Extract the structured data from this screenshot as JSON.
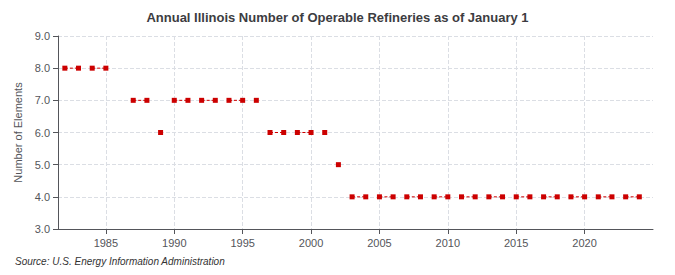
{
  "chart_data": {
    "type": "line",
    "title": "Annual Illinois Number of Operable Refineries as of January 1",
    "ylabel": "Number of Elements",
    "annotation": "Source: U.S. Energy Information Administration",
    "color": "#cc0000",
    "marker": "square",
    "line_style": "dashed",
    "grid": true,
    "xlim": [
      1981.5,
      2025
    ],
    "xticks": [
      1985,
      1990,
      1995,
      2000,
      2005,
      2010,
      2015,
      2020
    ],
    "ylim": [
      3.0,
      9.0
    ],
    "yticks": [
      {
        "value": 3.0,
        "label": "3.0"
      },
      {
        "value": 4.0,
        "label": "4.0"
      },
      {
        "value": 5.0,
        "label": "5.0"
      },
      {
        "value": 6.0,
        "label": "6.0"
      },
      {
        "value": 7.0,
        "label": "7.0"
      },
      {
        "value": 8.0,
        "label": "8.0"
      },
      {
        "value": 9.0,
        "label": "9.0"
      }
    ],
    "series": [
      {
        "x": [
          1982,
          1983
        ],
        "values": [
          8,
          8
        ]
      },
      {
        "x": [
          1984,
          1985
        ],
        "values": [
          8,
          8
        ]
      },
      {
        "x": [
          1987,
          1988
        ],
        "values": [
          7,
          7
        ]
      },
      {
        "x": [
          1989
        ],
        "values": [
          6
        ]
      },
      {
        "x": [
          1990,
          1991
        ],
        "values": [
          7,
          7
        ]
      },
      {
        "x": [
          1992,
          1993
        ],
        "values": [
          7,
          7
        ]
      },
      {
        "x": [
          1994,
          1995
        ],
        "values": [
          7,
          7
        ]
      },
      {
        "x": [
          1996
        ],
        "values": [
          7
        ]
      },
      {
        "x": [
          1997,
          1998
        ],
        "values": [
          6,
          6
        ]
      },
      {
        "x": [
          1999,
          2000
        ],
        "values": [
          6,
          6
        ]
      },
      {
        "x": [
          2001
        ],
        "values": [
          6
        ]
      },
      {
        "x": [
          2002
        ],
        "values": [
          5
        ]
      },
      {
        "x": [
          2003,
          2004
        ],
        "values": [
          4,
          4
        ]
      },
      {
        "x": [
          2005,
          2006
        ],
        "values": [
          4,
          4
        ]
      },
      {
        "x": [
          2007,
          2008
        ],
        "values": [
          4,
          4
        ]
      },
      {
        "x": [
          2009,
          2010
        ],
        "values": [
          4,
          4
        ]
      },
      {
        "x": [
          2011,
          2012
        ],
        "values": [
          4,
          4
        ]
      },
      {
        "x": [
          2013,
          2014
        ],
        "values": [
          4,
          4
        ]
      },
      {
        "x": [
          2015,
          2016
        ],
        "values": [
          4,
          4
        ]
      },
      {
        "x": [
          2017,
          2018
        ],
        "values": [
          4,
          4
        ]
      },
      {
        "x": [
          2019,
          2020
        ],
        "values": [
          4,
          4
        ]
      },
      {
        "x": [
          2021,
          2022
        ],
        "values": [
          4,
          4
        ]
      },
      {
        "x": [
          2023,
          2024
        ],
        "values": [
          4,
          4
        ]
      }
    ]
  }
}
